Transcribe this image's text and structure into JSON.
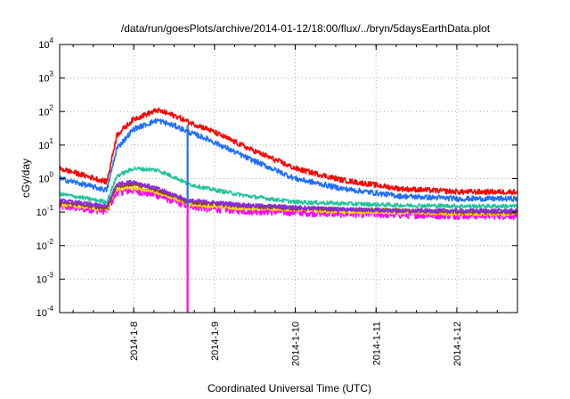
{
  "chart_data": {
    "type": "line",
    "title": "/data/run/goesPlots/archive/2014-01-12/18:00/flux/../bryn/5daysEarthData.plot",
    "xlabel": "Coordinated Universal Time (UTC)",
    "ylabel": "cGy/day",
    "y_scale": "log",
    "ylim": [
      0.0001,
      10000
    ],
    "xlim": [
      "2014-01-07T02:00",
      "2014-01-12T18:00"
    ],
    "grid": "dotted",
    "x_tick_labels": [
      "2014-1-8",
      "2014-1-9",
      "2014-1-10",
      "2014-1-11",
      "2014-1-12"
    ],
    "y_tick_labels": [
      {
        "base": "10",
        "exp": "4"
      },
      {
        "base": "10",
        "exp": "3"
      },
      {
        "base": "10",
        "exp": "2"
      },
      {
        "base": "10",
        "exp": "1"
      },
      {
        "base": "10",
        "exp": "0"
      },
      {
        "base": "10",
        "exp": "-1"
      },
      {
        "base": "10",
        "exp": "-2"
      },
      {
        "base": "10",
        "exp": "-3"
      },
      {
        "base": "10",
        "exp": "-4"
      }
    ],
    "x": [
      "2014-01-07T02:00",
      "2014-01-07T16:00",
      "2014-01-07T19:00",
      "2014-01-08T00:00",
      "2014-01-08T07:00",
      "2014-01-08T13:00",
      "2014-01-08T16:00",
      "2014-01-08T22:00",
      "2014-01-09T10:00",
      "2014-01-10T00:00",
      "2014-01-10T14:00",
      "2014-01-11T07:00",
      "2014-01-12T01:00",
      "2014-01-12T18:00"
    ],
    "series": [
      {
        "color": "#ff0000",
        "values": [
          2.0,
          0.8,
          20,
          60,
          110,
          70,
          50,
          30,
          8,
          2.0,
          0.9,
          0.5,
          0.4,
          0.4
        ],
        "noise": 0.08
      },
      {
        "color": "#1e6fff",
        "values": [
          1.0,
          0.45,
          8,
          30,
          55,
          35,
          25,
          15,
          4,
          1.0,
          0.5,
          0.3,
          0.25,
          0.25
        ],
        "noise": 0.08
      },
      {
        "color": "#22c49a",
        "values": [
          0.35,
          0.2,
          1.2,
          2.0,
          1.8,
          1.0,
          0.7,
          0.5,
          0.3,
          0.2,
          0.18,
          0.16,
          0.15,
          0.15
        ],
        "noise": 0.06
      },
      {
        "color": "#8a2be2",
        "values": [
          0.22,
          0.15,
          0.7,
          0.8,
          0.5,
          0.3,
          0.22,
          0.2,
          0.16,
          0.14,
          0.12,
          0.11,
          0.11,
          0.11
        ],
        "noise": 0.06
      },
      {
        "color": "#8b4513",
        "values": [
          0.2,
          0.13,
          0.6,
          0.7,
          0.45,
          0.28,
          0.2,
          0.18,
          0.15,
          0.13,
          0.12,
          0.11,
          0.1,
          0.1
        ],
        "noise": 0.06
      },
      {
        "color": "#ffd700",
        "values": [
          0.17,
          0.12,
          0.5,
          0.55,
          0.38,
          0.24,
          0.18,
          0.15,
          0.13,
          0.12,
          0.1,
          0.1,
          0.09,
          0.09
        ],
        "noise": 0.06
      },
      {
        "color": "#ff00ff",
        "values": [
          0.15,
          0.11,
          0.4,
          0.45,
          0.32,
          0.2,
          0.16,
          0.13,
          0.11,
          0.1,
          0.09,
          0.085,
          0.08,
          0.08
        ],
        "noise": 0.12
      }
    ],
    "gaps": [
      {
        "x": "2014-01-08T16:00",
        "color": "#1e6fff",
        "from": 40,
        "to": 0.15
      },
      {
        "x": "2014-01-08T16:00",
        "color": "#ff00ff",
        "from": 0.15,
        "to": 0.0001
      }
    ]
  }
}
